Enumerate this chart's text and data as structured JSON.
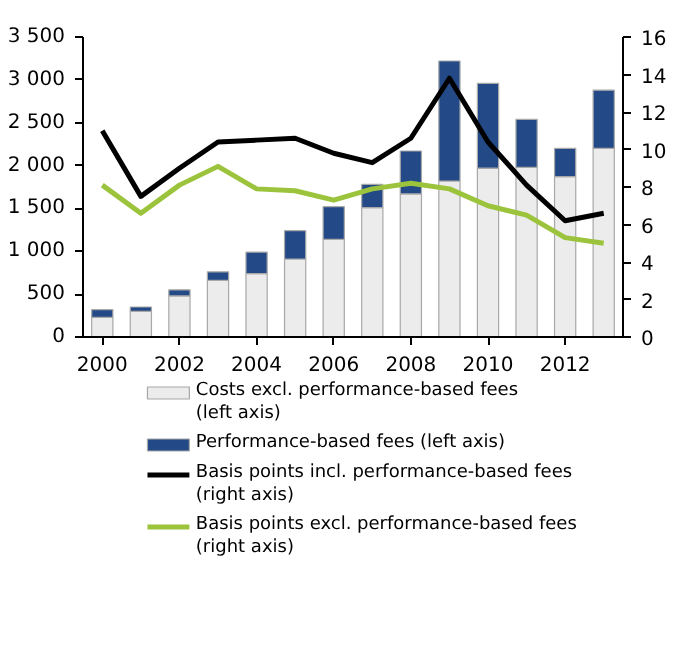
{
  "chart_data": {
    "type": "bar",
    "stacked": true,
    "x": [
      2000,
      2001,
      2002,
      2003,
      2004,
      2005,
      2006,
      2007,
      2008,
      2009,
      2010,
      2011,
      2012,
      2013
    ],
    "series": [
      {
        "name": "Costs excl. performance-based fees (left axis)",
        "color": "#ececec",
        "values": [
          230,
          300,
          480,
          660,
          740,
          910,
          1140,
          1510,
          1670,
          1820,
          1970,
          1980,
          1870,
          2200
        ]
      },
      {
        "name": "Performance-based fees (left axis)",
        "color": "#234a87",
        "values": [
          90,
          50,
          70,
          100,
          250,
          330,
          380,
          270,
          500,
          1400,
          990,
          560,
          330,
          680
        ]
      },
      {
        "name": "Basis points incl. performance-based fees (right axis)",
        "type": "line",
        "axis": "y2",
        "color": "#000000",
        "values": [
          11.0,
          7.5,
          9.0,
          10.4,
          10.5,
          10.6,
          9.8,
          9.3,
          10.6,
          13.8,
          10.4,
          8.1,
          6.2,
          6.6
        ]
      },
      {
        "name": "Basis points excl. performance-based fees (right axis)",
        "type": "line",
        "axis": "y2",
        "color": "#9bc43c",
        "values": [
          8.1,
          6.6,
          8.1,
          9.1,
          7.9,
          7.8,
          7.3,
          7.9,
          8.2,
          7.9,
          7.0,
          6.5,
          5.3,
          5.0
        ]
      }
    ],
    "xlim": [
      1999.5,
      2013.5
    ],
    "xticks": [
      2000,
      2002,
      2004,
      2006,
      2008,
      2010,
      2012
    ],
    "ylim": [
      0,
      3500
    ],
    "yticks": [
      0,
      500,
      {
        "value": 1000,
        "label": "1 000"
      },
      {
        "value": 1500,
        "label": "1 500"
      },
      {
        "value": 2000,
        "label": "2 000"
      },
      {
        "value": 2500,
        "label": "2 500"
      },
      {
        "value": 3000,
        "label": "3 000"
      },
      {
        "value": 3500,
        "label": "3 500"
      }
    ],
    "y2lim": [
      0,
      16
    ],
    "y2ticks": [
      0,
      2,
      4,
      6,
      8,
      10,
      12,
      14,
      16
    ],
    "legend": "bottom",
    "grid": false
  }
}
